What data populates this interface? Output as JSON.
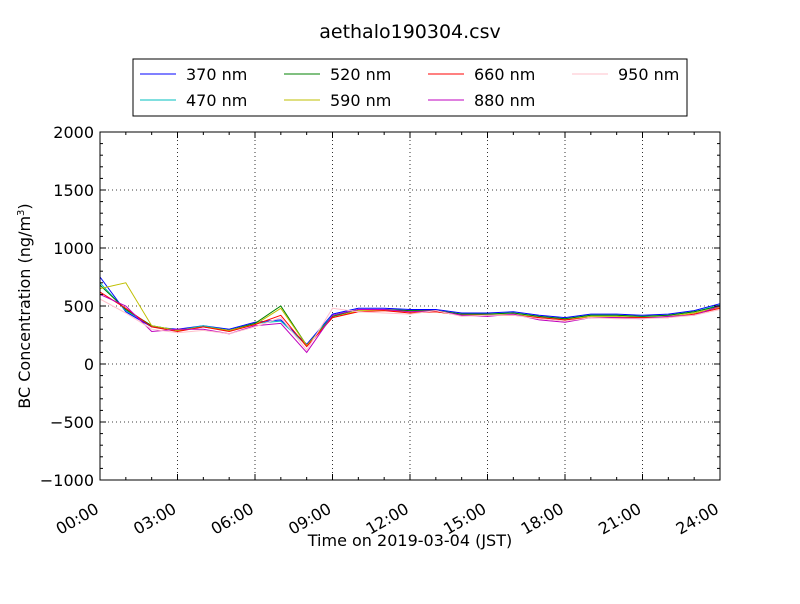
{
  "chart_data": {
    "type": "line",
    "title": "aethalo190304.csv",
    "xlabel": "Time on 2019-03-04 (JST)",
    "ylabel_main": "BC Concentration (ng/m",
    "ylabel_sup": "3",
    "ylabel_close": ")",
    "xlim": [
      0,
      24
    ],
    "ylim": [
      -1000,
      2000
    ],
    "grid": true,
    "legend_position": "top-center-outside",
    "x_ticks": [
      0,
      3,
      6,
      9,
      12,
      15,
      18,
      21,
      24
    ],
    "x_tick_labels": [
      "00:00",
      "03:00",
      "06:00",
      "09:00",
      "12:00",
      "15:00",
      "18:00",
      "21:00",
      "24:00"
    ],
    "y_ticks": [
      -1000,
      -500,
      0,
      500,
      1000,
      1500,
      2000
    ],
    "y_tick_labels": [
      "−1000",
      "−500",
      "0",
      "500",
      "1000",
      "1500",
      "2000"
    ],
    "series": [
      {
        "name": "370 nm",
        "color": "#0000ff",
        "x": [
          0,
          1,
          2,
          3,
          4,
          5,
          6,
          7,
          8,
          9,
          10,
          11,
          12,
          13,
          14,
          15,
          16,
          17,
          18,
          19,
          20,
          21,
          22,
          23,
          24
        ],
        "values": [
          750,
          450,
          320,
          300,
          330,
          300,
          360,
          380,
          170,
          430,
          480,
          480,
          470,
          470,
          440,
          440,
          450,
          420,
          400,
          430,
          430,
          420,
          430,
          460,
          520
        ]
      },
      {
        "name": "470 nm",
        "color": "#00bfbf",
        "x": [
          0,
          1,
          2,
          3,
          4,
          5,
          6,
          7,
          8,
          9,
          10,
          11,
          12,
          13,
          14,
          15,
          16,
          17,
          18,
          19,
          20,
          21,
          22,
          23,
          24
        ],
        "values": [
          700,
          460,
          330,
          290,
          330,
          290,
          350,
          370,
          160,
          420,
          470,
          470,
          460,
          460,
          430,
          430,
          440,
          410,
          390,
          420,
          420,
          410,
          420,
          450,
          510
        ]
      },
      {
        "name": "520 nm",
        "color": "#008000",
        "x": [
          0,
          1,
          2,
          3,
          4,
          5,
          6,
          7,
          8,
          9,
          10,
          11,
          12,
          13,
          14,
          15,
          16,
          17,
          18,
          19,
          20,
          21,
          22,
          23,
          24
        ],
        "values": [
          680,
          470,
          330,
          290,
          320,
          290,
          350,
          500,
          160,
          410,
          470,
          470,
          460,
          460,
          430,
          430,
          440,
          410,
          390,
          420,
          420,
          410,
          420,
          450,
          500
        ]
      },
      {
        "name": "590 nm",
        "color": "#bfbf00",
        "x": [
          0,
          1,
          2,
          3,
          4,
          5,
          6,
          7,
          8,
          9,
          10,
          11,
          12,
          13,
          14,
          15,
          16,
          17,
          18,
          19,
          20,
          21,
          22,
          23,
          24
        ],
        "values": [
          650,
          700,
          330,
          290,
          320,
          290,
          340,
          480,
          160,
          400,
          460,
          460,
          450,
          450,
          420,
          420,
          430,
          400,
          380,
          410,
          410,
          400,
          410,
          440,
          490
        ]
      },
      {
        "name": "660 nm",
        "color": "#ff0000",
        "x": [
          0,
          1,
          2,
          3,
          4,
          5,
          6,
          7,
          8,
          9,
          10,
          11,
          12,
          13,
          14,
          15,
          16,
          17,
          18,
          19,
          20,
          21,
          22,
          23,
          24
        ],
        "values": [
          620,
          480,
          320,
          280,
          320,
          280,
          340,
          420,
          150,
          400,
          450,
          460,
          440,
          450,
          420,
          420,
          420,
          400,
          380,
          400,
          400,
          400,
          400,
          430,
          480
        ]
      },
      {
        "name": "880 nm",
        "color": "#bf00bf",
        "x": [
          0,
          1,
          2,
          3,
          4,
          5,
          6,
          7,
          8,
          9,
          10,
          11,
          12,
          13,
          14,
          15,
          16,
          17,
          18,
          19,
          20,
          21,
          22,
          23,
          24
        ],
        "values": [
          600,
          500,
          280,
          300,
          300,
          260,
          330,
          350,
          100,
          420,
          470,
          470,
          450,
          460,
          420,
          410,
          430,
          380,
          360,
          400,
          400,
          390,
          410,
          420,
          500
        ]
      },
      {
        "name": "950 nm",
        "color": "#ffc0cb",
        "x": [
          0,
          1,
          2,
          3,
          4,
          5,
          6,
          7,
          8,
          9,
          10,
          11,
          12,
          13,
          14,
          15,
          16,
          17,
          18,
          19,
          20,
          21,
          22,
          23,
          24
        ],
        "values": [
          560,
          440,
          300,
          270,
          290,
          260,
          320,
          400,
          120,
          480,
          450,
          440,
          430,
          460,
          410,
          420,
          420,
          390,
          370,
          400,
          390,
          390,
          400,
          420,
          470
        ]
      }
    ]
  }
}
